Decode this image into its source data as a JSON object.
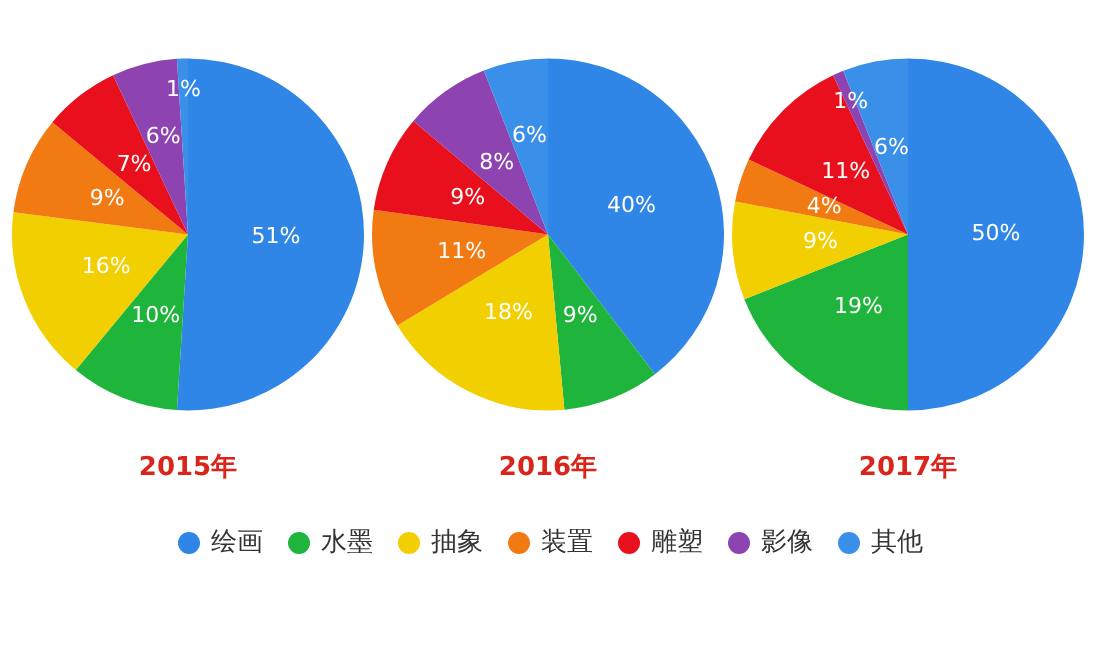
{
  "chart_data": [
    {
      "type": "pie",
      "title": "2015年",
      "categories": [
        "绘画",
        "水墨",
        "抽象",
        "装置",
        "雕塑",
        "影像",
        "其他"
      ],
      "values": [
        51,
        10,
        16,
        9,
        7,
        6,
        1
      ],
      "value_labels": [
        "51%",
        "10%",
        "16%",
        "9%",
        "7%",
        "6%",
        "1%"
      ],
      "colors": [
        "#2f86e6",
        "#1fb43c",
        "#f2cf00",
        "#f27a12",
        "#e8101c",
        "#8e44b0",
        "#3a8fe8"
      ],
      "legend": "bottom"
    },
    {
      "type": "pie",
      "title": "2016年",
      "categories": [
        null,
        null,
        null,
        null,
        null,
        null,
        null
      ],
      "values": [
        40,
        9,
        18,
        11,
        9,
        8,
        6
      ],
      "value_labels": [
        "40%",
        "9%",
        "18%",
        "11%",
        "9%",
        "8%",
        "6%"
      ],
      "colors": [
        "#2f86e6",
        "#1fb43c",
        "#f2cf00",
        "#f27a12",
        "#e8101c",
        "#8e44b0",
        "#3a8fe8"
      ]
    },
    {
      "type": "pie",
      "title": "2017年",
      "categories": [
        null,
        null,
        null,
        null,
        null,
        null,
        null
      ],
      "values": [
        50,
        19,
        9,
        4,
        11,
        1,
        6
      ],
      "value_labels": [
        "50%",
        "19%",
        "9%",
        "4%",
        "11%",
        "1%",
        "6%"
      ],
      "colors": [
        "#2f86e6",
        "#1fb43c",
        "#f2cf00",
        "#f27a12",
        "#e8101c",
        "#8e44b0",
        "#3a8fe8"
      ]
    }
  ]
}
